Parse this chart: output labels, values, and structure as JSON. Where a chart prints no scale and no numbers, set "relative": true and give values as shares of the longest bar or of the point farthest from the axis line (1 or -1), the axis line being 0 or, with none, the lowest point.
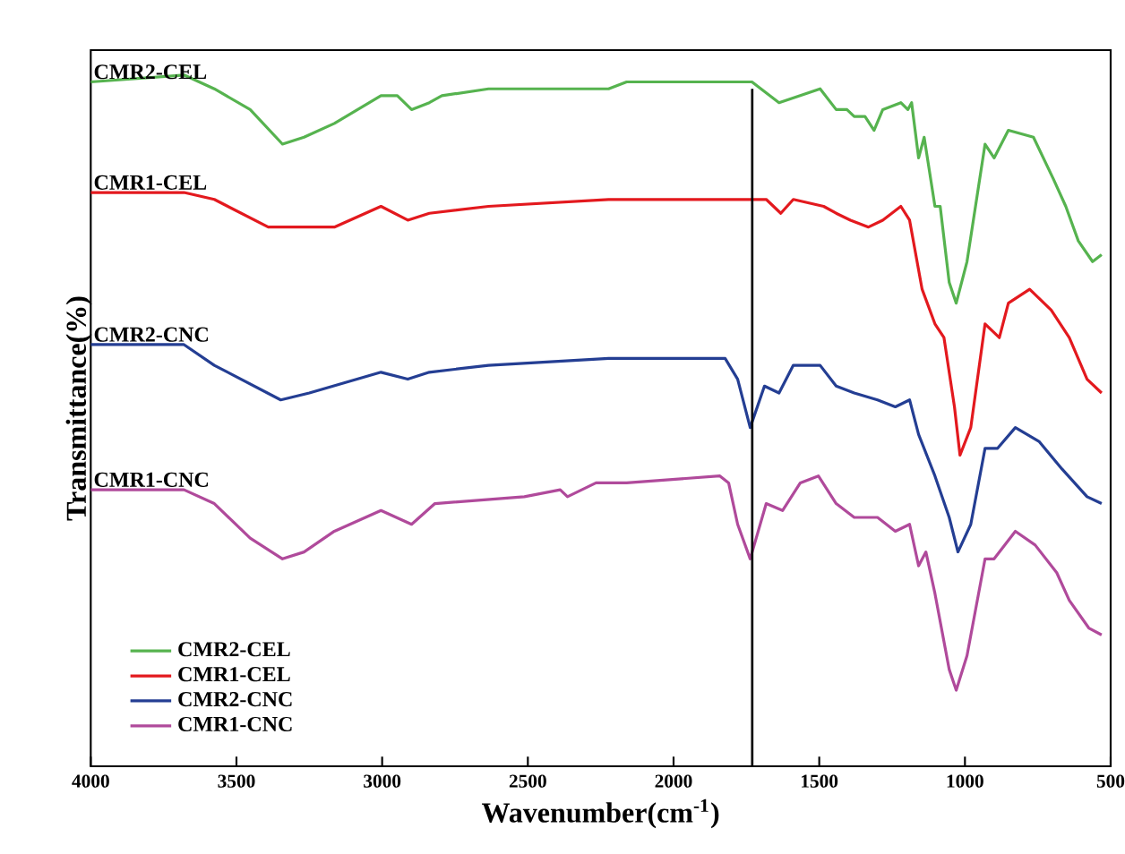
{
  "chart_data": {
    "type": "line",
    "relative": true,
    "xlabel": "Wavenumber(cm$^{-1}$)",
    "ylabel": "Transmittance(%)",
    "xlim": [
      4000,
      500
    ],
    "xticks": [
      4000,
      3500,
      3000,
      2500,
      2000,
      1500,
      1000,
      500
    ],
    "tick_labels": "x",
    "legend": "bottom left",
    "marker": "none",
    "line_style": "solid",
    "ref_lines": [
      {
        "axis": "x",
        "value": 1730,
        "color": "#000000"
      }
    ],
    "annotations": [
      "CMR2-CEL",
      "CMR1-CEL",
      "CMR2-CNC",
      "CMR1-CNC"
    ],
    "series": [
      {
        "name": "CMR2-CEL",
        "color": "#56b34f",
        "x": [
          4000,
          3680,
          3576,
          3453,
          3342,
          3268,
          3164,
          3004,
          2948,
          2899,
          2838,
          2795,
          2635,
          2223,
          2161,
          1731,
          1638,
          1497,
          1442,
          1405,
          1380,
          1343,
          1312,
          1282,
          1220,
          1196,
          1183,
          1159,
          1140,
          1103,
          1085,
          1054,
          1030,
          993,
          931,
          900,
          851,
          765,
          697,
          654,
          611,
          562,
          531
        ],
        "values": [
          0.99,
          1.0,
          0.98,
          0.95,
          0.9,
          0.91,
          0.93,
          0.97,
          0.97,
          0.95,
          0.96,
          0.97,
          0.98,
          0.98,
          0.99,
          0.99,
          0.96,
          0.98,
          0.95,
          0.95,
          0.94,
          0.94,
          0.92,
          0.95,
          0.96,
          0.95,
          0.96,
          0.88,
          0.91,
          0.81,
          0.81,
          0.7,
          0.67,
          0.73,
          0.9,
          0.88,
          0.92,
          0.91,
          0.85,
          0.81,
          0.76,
          0.73,
          0.74
        ]
      },
      {
        "name": "CMR1-CEL",
        "color": "#e3191e",
        "x": [
          4000,
          3680,
          3576,
          3391,
          3250,
          3164,
          3004,
          2912,
          2838,
          2635,
          2223,
          1731,
          1682,
          1632,
          1589,
          1485,
          1442,
          1393,
          1331,
          1282,
          1220,
          1190,
          1147,
          1103,
          1072,
          1036,
          1017,
          980,
          931,
          882,
          851,
          778,
          704,
          642,
          581,
          531
        ],
        "values": [
          0.83,
          0.83,
          0.82,
          0.78,
          0.78,
          0.78,
          0.81,
          0.79,
          0.8,
          0.81,
          0.82,
          0.82,
          0.82,
          0.8,
          0.82,
          0.81,
          0.8,
          0.79,
          0.78,
          0.79,
          0.81,
          0.79,
          0.69,
          0.64,
          0.62,
          0.52,
          0.45,
          0.49,
          0.64,
          0.62,
          0.67,
          0.69,
          0.66,
          0.62,
          0.56,
          0.54
        ]
      },
      {
        "name": "CMR2-CNC",
        "color": "#243e93",
        "x": [
          4000,
          3680,
          3576,
          3348,
          3250,
          3004,
          2912,
          2838,
          2635,
          2223,
          2161,
          1823,
          1780,
          1737,
          1688,
          1638,
          1589,
          1497,
          1442,
          1380,
          1300,
          1239,
          1190,
          1159,
          1103,
          1054,
          1024,
          980,
          931,
          888,
          827,
          746,
          667,
          581,
          531
        ],
        "values": [
          0.61,
          0.61,
          0.58,
          0.53,
          0.54,
          0.57,
          0.56,
          0.57,
          0.58,
          0.59,
          0.59,
          0.59,
          0.56,
          0.49,
          0.55,
          0.54,
          0.58,
          0.58,
          0.55,
          0.54,
          0.53,
          0.52,
          0.53,
          0.48,
          0.42,
          0.36,
          0.31,
          0.35,
          0.46,
          0.46,
          0.49,
          0.47,
          0.43,
          0.39,
          0.38
        ]
      },
      {
        "name": "CMR1-CNC",
        "color": "#b04a9b",
        "x": [
          4000,
          3680,
          3576,
          3453,
          3342,
          3268,
          3164,
          3004,
          2899,
          2819,
          2512,
          2389,
          2364,
          2266,
          2161,
          1841,
          1811,
          1780,
          1737,
          1682,
          1626,
          1565,
          1503,
          1442,
          1380,
          1300,
          1239,
          1190,
          1159,
          1134,
          1103,
          1054,
          1030,
          993,
          931,
          900,
          827,
          759,
          685,
          642,
          575,
          531
        ],
        "values": [
          0.4,
          0.4,
          0.38,
          0.33,
          0.3,
          0.31,
          0.34,
          0.37,
          0.35,
          0.38,
          0.39,
          0.4,
          0.39,
          0.41,
          0.41,
          0.42,
          0.41,
          0.35,
          0.3,
          0.38,
          0.37,
          0.41,
          0.42,
          0.38,
          0.36,
          0.36,
          0.34,
          0.35,
          0.29,
          0.31,
          0.25,
          0.14,
          0.11,
          0.16,
          0.3,
          0.3,
          0.34,
          0.32,
          0.28,
          0.24,
          0.2,
          0.19
        ]
      }
    ]
  }
}
